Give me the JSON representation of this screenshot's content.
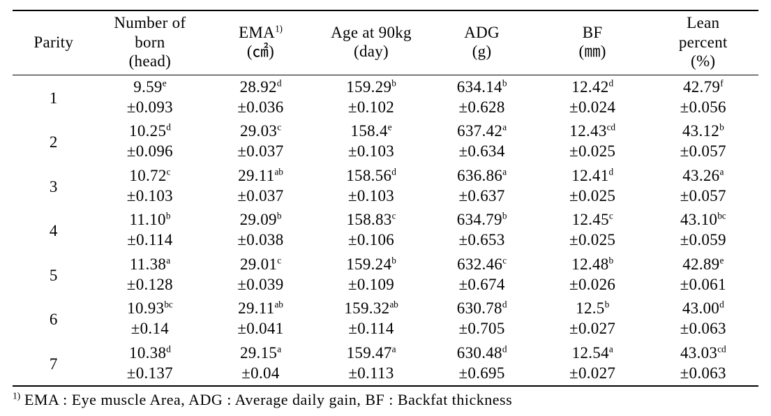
{
  "columns": {
    "parity": {
      "label": "Parity"
    },
    "nborn": {
      "label_line1": "Number of",
      "label_line2": "born",
      "label_line3": "(head)"
    },
    "ema": {
      "label_line1": "EMA",
      "sup": "1)",
      "label_line2": "(㎠)"
    },
    "age": {
      "label_line1": "Age at 90kg",
      "label_line2": "(day)"
    },
    "adg": {
      "label_line1": "ADG",
      "label_line2": "(g)"
    },
    "bf": {
      "label_line1": "BF",
      "label_line2": "(㎜)"
    },
    "lean": {
      "label_line1": "Lean",
      "label_line2": "percent",
      "label_line3": "(%)"
    }
  },
  "rows": [
    {
      "parity": "1",
      "nborn": {
        "val": "9.59",
        "sup": "e",
        "err": "±0.093"
      },
      "ema": {
        "val": "28.92",
        "sup": "d",
        "err": "±0.036"
      },
      "age": {
        "val": "159.29",
        "sup": "b",
        "err": "±0.102"
      },
      "adg": {
        "val": "634.14",
        "sup": "b",
        "err": "±0.628"
      },
      "bf": {
        "val": "12.42",
        "sup": "d",
        "err": "±0.024"
      },
      "lean": {
        "val": "42.79",
        "sup": "f",
        "err": "±0.056"
      }
    },
    {
      "parity": "2",
      "nborn": {
        "val": "10.25",
        "sup": "d",
        "err": "±0.096"
      },
      "ema": {
        "val": "29.03",
        "sup": "c",
        "err": "±0.037"
      },
      "age": {
        "val": "158.4",
        "sup": "e",
        "err": "±0.103"
      },
      "adg": {
        "val": "637.42",
        "sup": "a",
        "err": "±0.634"
      },
      "bf": {
        "val": "12.43",
        "sup": "cd",
        "err": "±0.025"
      },
      "lean": {
        "val": "43.12",
        "sup": "b",
        "err": "±0.057"
      }
    },
    {
      "parity": "3",
      "nborn": {
        "val": "10.72",
        "sup": "c",
        "err": "±0.103"
      },
      "ema": {
        "val": "29.11",
        "sup": "ab",
        "err": "±0.037"
      },
      "age": {
        "val": "158.56",
        "sup": "d",
        "err": "±0.103"
      },
      "adg": {
        "val": "636.86",
        "sup": "a",
        "err": "±0.637"
      },
      "bf": {
        "val": "12.41",
        "sup": "d",
        "err": "±0.025"
      },
      "lean": {
        "val": "43.26",
        "sup": "a",
        "err": "±0.057"
      }
    },
    {
      "parity": "4",
      "nborn": {
        "val": "11.10",
        "sup": "b",
        "err": "±0.114"
      },
      "ema": {
        "val": "29.09",
        "sup": "b",
        "err": "±0.038"
      },
      "age": {
        "val": "158.83",
        "sup": "c",
        "err": "±0.106"
      },
      "adg": {
        "val": "634.79",
        "sup": "b",
        "err": "±0.653"
      },
      "bf": {
        "val": "12.45",
        "sup": "c",
        "err": "±0.025"
      },
      "lean": {
        "val": "43.10",
        "sup": "bc",
        "err": "±0.059"
      }
    },
    {
      "parity": "5",
      "nborn": {
        "val": "11.38",
        "sup": "a",
        "err": "±0.128"
      },
      "ema": {
        "val": "29.01",
        "sup": "c",
        "err": "±0.039"
      },
      "age": {
        "val": "159.24",
        "sup": "b",
        "err": "±0.109"
      },
      "adg": {
        "val": "632.46",
        "sup": "c",
        "err": "±0.674"
      },
      "bf": {
        "val": "12.48",
        "sup": "b",
        "err": "±0.026"
      },
      "lean": {
        "val": "42.89",
        "sup": "e",
        "err": "±0.061"
      }
    },
    {
      "parity": "6",
      "nborn": {
        "val": "10.93",
        "sup": "bc",
        "err": "±0.14"
      },
      "ema": {
        "val": "29.11",
        "sup": "ab",
        "err": "±0.041"
      },
      "age": {
        "val": "159.32",
        "sup": "ab",
        "err": "±0.114"
      },
      "adg": {
        "val": "630.78",
        "sup": "d",
        "err": "±0.705"
      },
      "bf": {
        "val": "12.5",
        "sup": "b",
        "err": "±0.027"
      },
      "lean": {
        "val": "43.00",
        "sup": "d",
        "err": "±0.063"
      }
    },
    {
      "parity": "7",
      "nborn": {
        "val": "10.38",
        "sup": "d",
        "err": "±0.137"
      },
      "ema": {
        "val": "29.15",
        "sup": "a",
        "err": "±0.04"
      },
      "age": {
        "val": "159.47",
        "sup": "a",
        "err": "±0.113"
      },
      "adg": {
        "val": "630.48",
        "sup": "d",
        "err": "±0.695"
      },
      "bf": {
        "val": "12.54",
        "sup": "a",
        "err": "±0.027"
      },
      "lean": {
        "val": "43.03",
        "sup": "cd",
        "err": "±0.063"
      }
    }
  ],
  "footnote": {
    "sup": "1)",
    "text": " EMA : Eye muscle Area, ADG : Average daily gain, BF : Backfat thickness"
  }
}
